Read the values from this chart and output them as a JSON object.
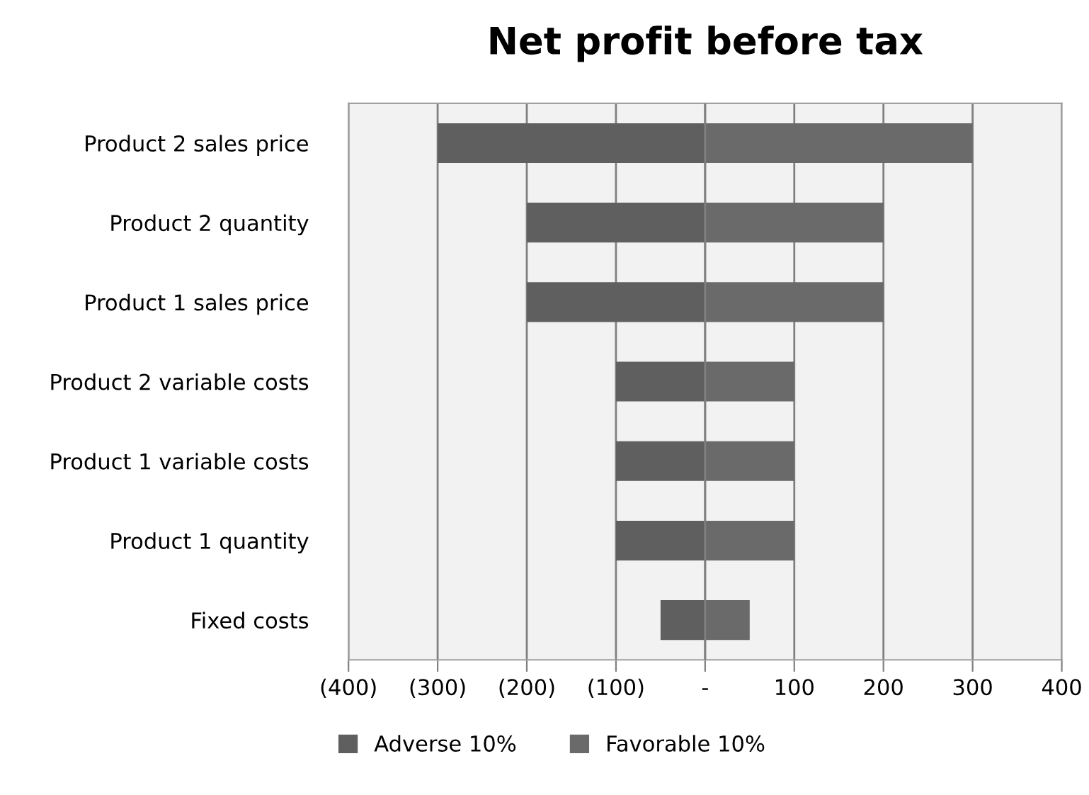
{
  "chart_data": {
    "type": "bar",
    "title": "Net profit before tax",
    "orientation": "horizontal",
    "stacked": true,
    "categories": [
      "Product 2 sales price",
      "Product 2 quantity",
      "Product 1 sales price",
      "Product 2 variable costs",
      "Product 1 variable costs",
      "Product 1 quantity",
      "Fixed costs"
    ],
    "series": [
      {
        "name": "Adverse 10%",
        "color": "#5f5f5f",
        "values": [
          -300,
          -200,
          -200,
          -100,
          -100,
          -100,
          -50
        ]
      },
      {
        "name": "Favorable 10%",
        "color": "#6a6a6a",
        "values": [
          300,
          200,
          200,
          100,
          100,
          100,
          50
        ]
      }
    ],
    "xlim": [
      -400,
      400
    ],
    "xticks": [
      {
        "value": -400,
        "label": "(400)"
      },
      {
        "value": -300,
        "label": "(300)"
      },
      {
        "value": -200,
        "label": "(200)"
      },
      {
        "value": -100,
        "label": "(100)"
      },
      {
        "value": 0,
        "label": "-"
      },
      100,
      200,
      300,
      400
    ],
    "grid": "x",
    "legend": "bottom"
  }
}
